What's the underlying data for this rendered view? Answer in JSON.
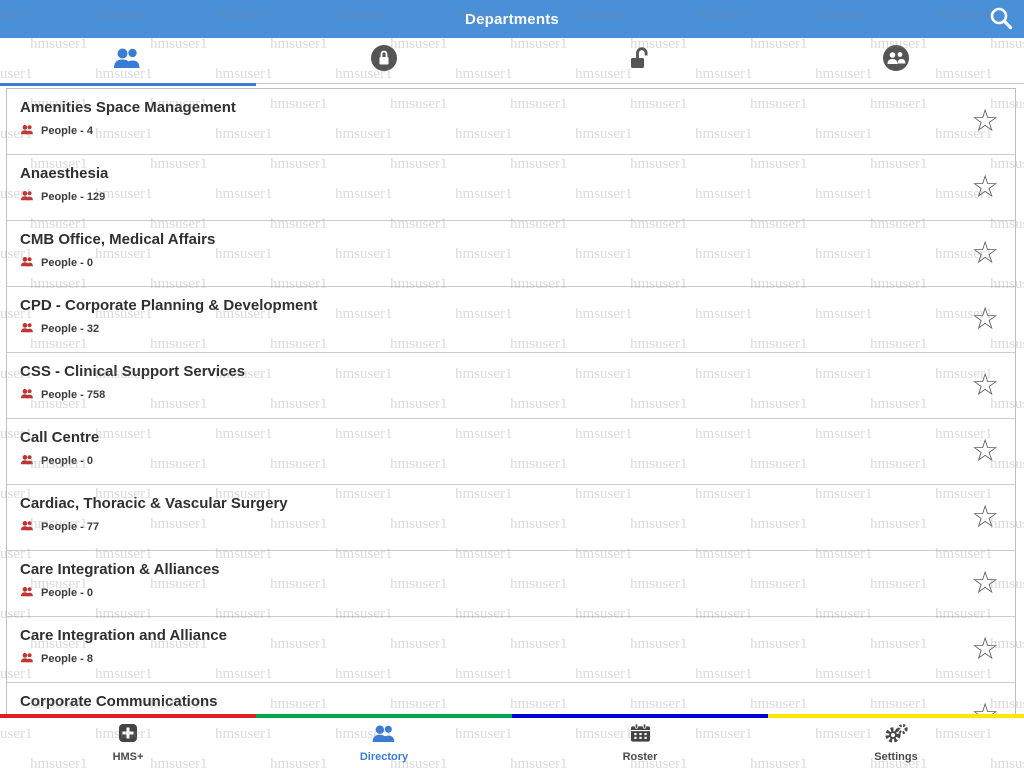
{
  "header": {
    "title": "Departments",
    "search_icon": "search-icon"
  },
  "tabs": [
    {
      "icon": "people-icon",
      "active": true
    },
    {
      "icon": "lock-icon",
      "active": false
    },
    {
      "icon": "unlock-icon",
      "active": false
    },
    {
      "icon": "group-circle-icon",
      "active": false
    }
  ],
  "departments": [
    {
      "name": "Amenities Space Management",
      "people_label": "People - 4"
    },
    {
      "name": "Anaesthesia",
      "people_label": "People - 129"
    },
    {
      "name": "CMB Office, Medical Affairs",
      "people_label": "People - 0"
    },
    {
      "name": "CPD - Corporate Planning & Development",
      "people_label": "People - 32"
    },
    {
      "name": "CSS - Clinical Support Services",
      "people_label": "People - 758"
    },
    {
      "name": "Call Centre",
      "people_label": "People - 0"
    },
    {
      "name": "Cardiac, Thoracic & Vascular Surgery",
      "people_label": "People - 77"
    },
    {
      "name": "Care Integration & Alliances",
      "people_label": "People - 0"
    },
    {
      "name": "Care Integration and Alliance",
      "people_label": "People - 8"
    },
    {
      "name": "Corporate Communications",
      "people_label": ""
    }
  ],
  "bottom_nav": [
    {
      "label": "HMS+",
      "icon": "hms-icon",
      "active": false
    },
    {
      "label": "Directory",
      "icon": "directory-people-icon",
      "active": true
    },
    {
      "label": "Roster",
      "icon": "calendar-icon",
      "active": false
    },
    {
      "label": "Settings",
      "icon": "gear-icon",
      "active": false
    }
  ],
  "footer": {
    "stripe_colors": [
      "#e02020",
      "#00a651",
      "#0000d8",
      "#ffe800"
    ]
  },
  "watermark": {
    "text": "hmsuser1"
  },
  "colors": {
    "header_blue": "#4a90d8",
    "accent_blue": "#3a7cd5",
    "people_icon_red": "#c03434",
    "icon_gray": "#555555",
    "star_gray": "#5f5f5f"
  }
}
